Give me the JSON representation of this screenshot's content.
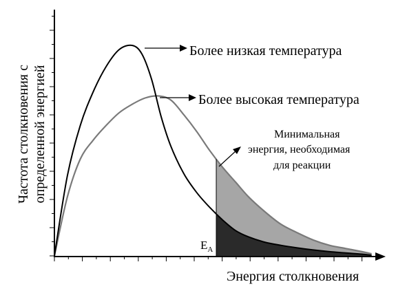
{
  "chart_data": {
    "type": "line",
    "title": "",
    "xlabel": "Энергия столкновения",
    "ylabel": [
      "Частота столкновения с",
      "определенной энергией"
    ],
    "xlim": [
      0,
      100
    ],
    "ylim": [
      0,
      100
    ],
    "grid": false,
    "series": [
      {
        "name": "Более низкая температура",
        "color": "#000000",
        "x": [
          0,
          4,
          8,
          12,
          16,
          20,
          24,
          27,
          30,
          33,
          36,
          40,
          44,
          48,
          52,
          56,
          60,
          65,
          70,
          75,
          80,
          85,
          90,
          95,
          98
        ],
        "y": [
          0,
          38,
          62,
          78,
          90,
          98,
          100,
          96,
          84,
          66,
          52,
          39,
          30,
          23,
          17,
          12,
          9,
          6.5,
          5,
          3.8,
          2.8,
          2,
          1.4,
          0.8,
          0.3
        ]
      },
      {
        "name": "Более высокая температура",
        "color": "#7a7a7a",
        "x": [
          0,
          4,
          8,
          12,
          16,
          20,
          24,
          28,
          32,
          36,
          40,
          44,
          48,
          52,
          56,
          60,
          65,
          70,
          75,
          80,
          85,
          90,
          95,
          98
        ],
        "y": [
          0,
          28,
          46,
          55,
          62,
          68,
          72,
          75,
          76,
          74,
          67,
          59,
          50,
          42,
          35,
          28,
          21,
          15,
          11,
          7.5,
          5,
          3.5,
          2,
          1
        ]
      }
    ],
    "threshold": {
      "label": "E",
      "subscript": "A",
      "x": 50
    },
    "annotations": [
      "Более низкая температура",
      "Более высокая температура",
      "Минимальная",
      "энергия, необходимая",
      "для реакции"
    ],
    "fill_colors": {
      "higher_temperature_tail": "#a6a6a6",
      "lower_temperature_tail": "#2a2a2a"
    }
  }
}
